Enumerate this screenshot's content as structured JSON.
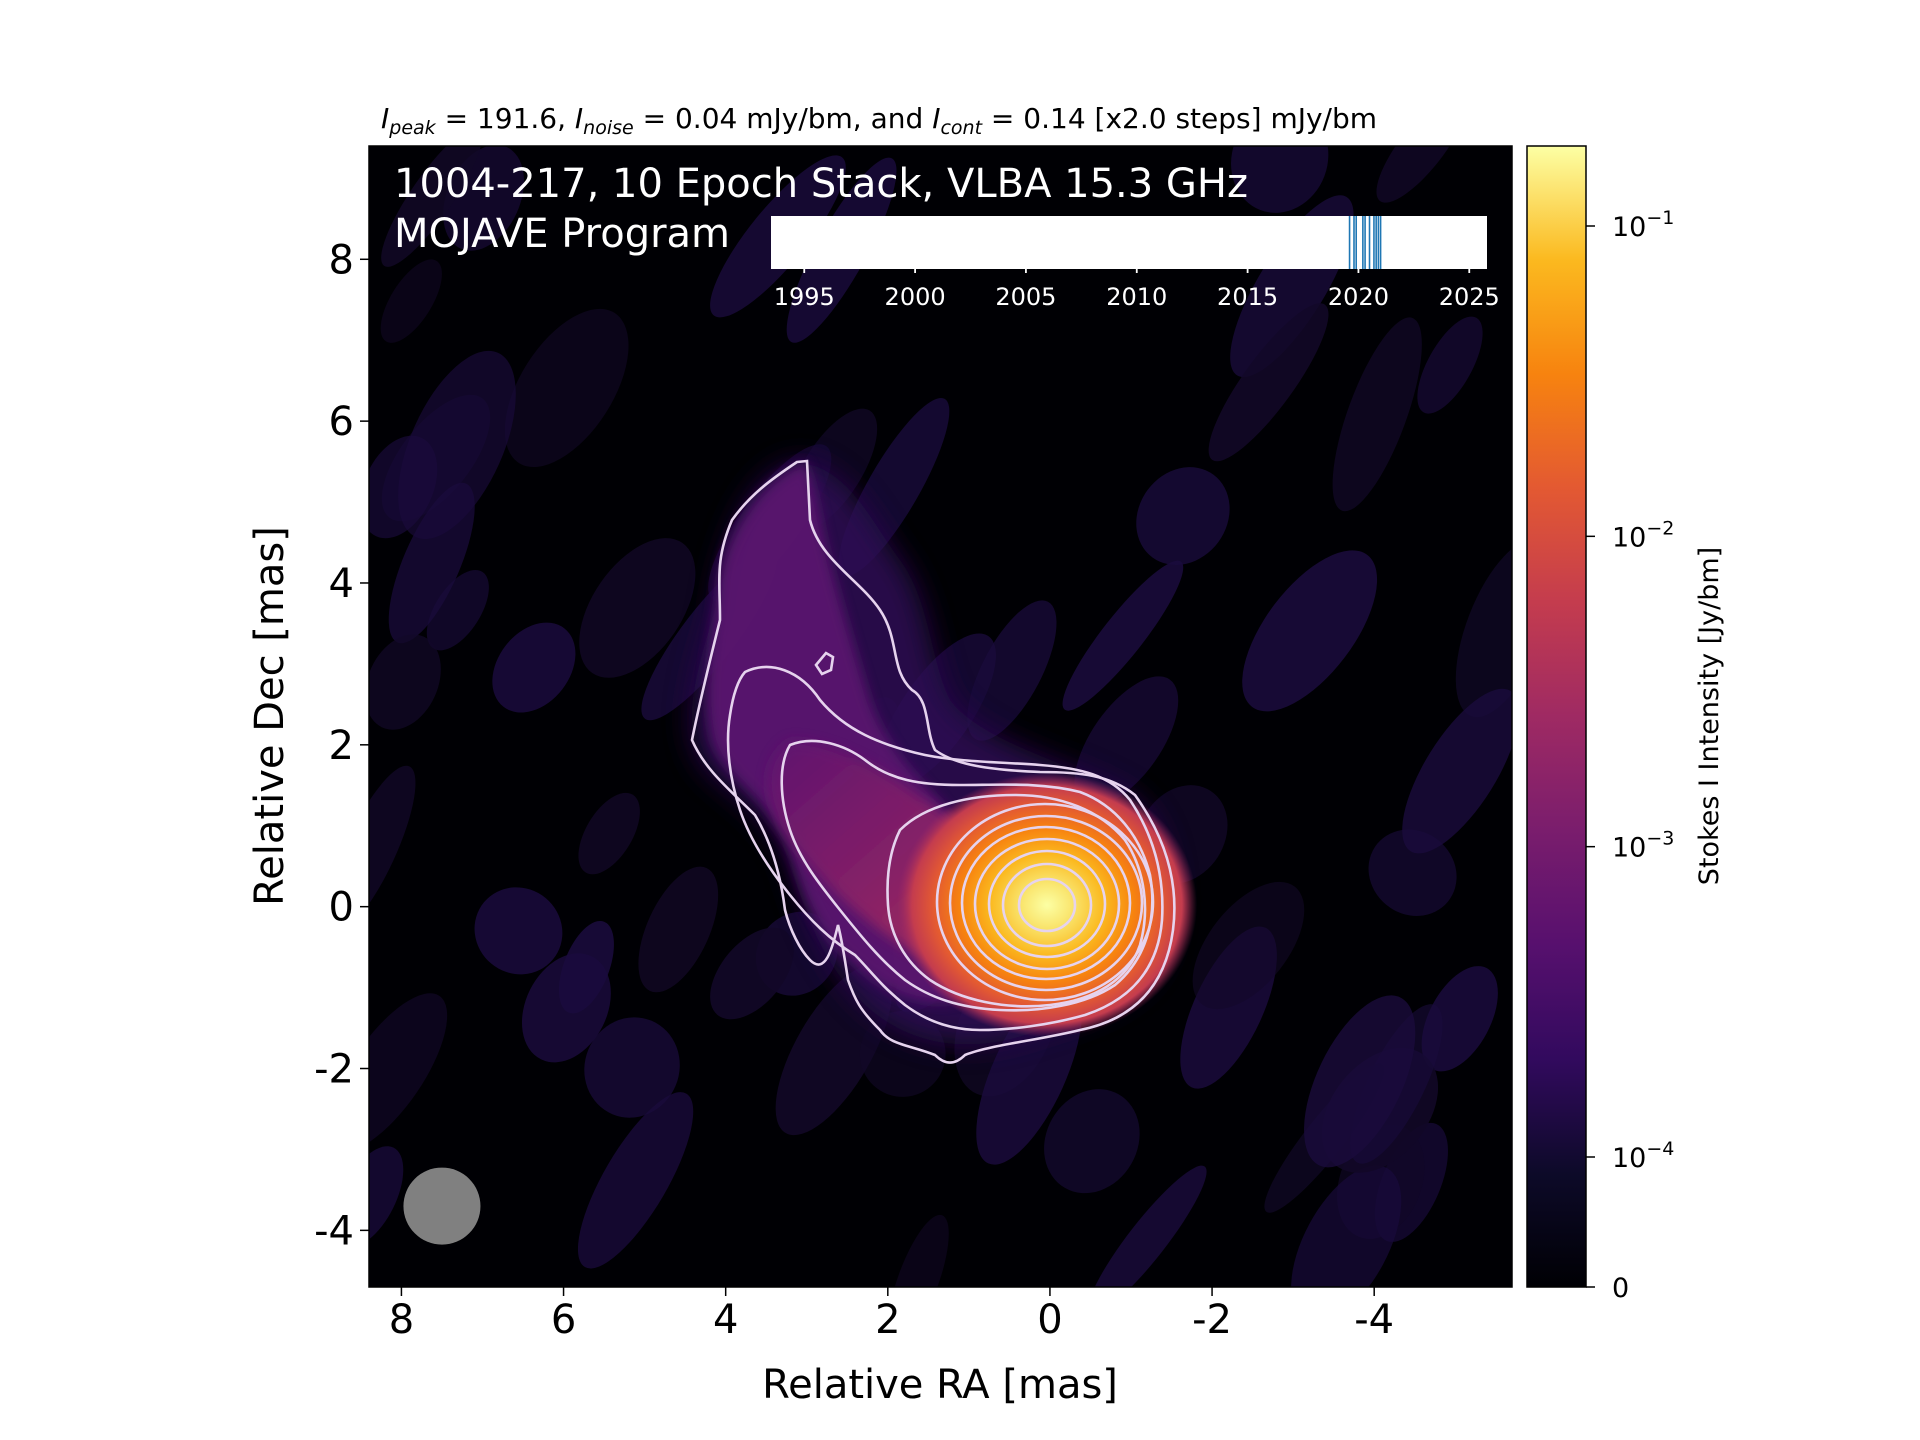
{
  "caption": {
    "peak_sym": "I",
    "peak_sub": "peak",
    "peak_val": " = 191.6, ",
    "noise_sym": "I",
    "noise_sub": "noise",
    "noise_val": " = 0.04 mJy/bm, and ",
    "cont_sym": "I",
    "cont_sub": "cont",
    "cont_val": " = 0.14 [x2.0 steps] mJy/bm"
  },
  "overlay": {
    "line1": "1004-217, 10 Epoch Stack, VLBA 15.3 GHz",
    "line2": "MOJAVE Program"
  },
  "chart_data": {
    "type": "heatmap",
    "xlabel": "Relative RA [mas]",
    "ylabel": "Relative Dec [mas]",
    "xlim": [
      8.4,
      -5.7
    ],
    "ylim": [
      -4.7,
      9.4
    ],
    "xticks": [
      8,
      6,
      4,
      2,
      0,
      -2,
      -4
    ],
    "xtick_labels": [
      "8",
      "6",
      "4",
      "2",
      "0",
      "-2",
      "-4"
    ],
    "yticks": [
      8,
      6,
      4,
      2,
      0,
      -2,
      -4
    ],
    "ytick_labels": [
      "8",
      "6",
      "4",
      "2",
      "0",
      "-2",
      "-4"
    ],
    "colormap": "inferno",
    "colorbar": {
      "label": "Stokes I Intensity [Jy/bm]",
      "ticks": [
        {
          "value": 0.1,
          "base": "10",
          "exp": "−1"
        },
        {
          "value": 0.01,
          "base": "10",
          "exp": "−2"
        },
        {
          "value": 0.001,
          "base": "10",
          "exp": "−3"
        },
        {
          "value": 0.0001,
          "base": "10",
          "exp": "−4"
        },
        {
          "value": 0,
          "base": "0",
          "exp": ""
        }
      ]
    },
    "source": {
      "peak_ra": 0.0,
      "peak_dec": 0.0,
      "jet_direction": "north-east"
    },
    "contour_levels_mJy": [
      0.14,
      0.28,
      0.56,
      1.12,
      2.24,
      4.48,
      8.96,
      17.92,
      35.84,
      71.68,
      143.36
    ],
    "beam": {
      "ra": 7.5,
      "dec": -3.7,
      "major_mas": 0.95,
      "minor_mas": 0.95,
      "color": "#808080"
    },
    "epoch_timeline": {
      "xlim": [
        1993.5,
        2025.8
      ],
      "ticks": [
        1995,
        2000,
        2005,
        2010,
        2015,
        2020,
        2025
      ],
      "tick_labels": [
        "1995",
        "2000",
        "2005",
        "2010",
        "2015",
        "2020",
        "2025"
      ],
      "epochs": [
        2019.6,
        2019.8,
        2019.9,
        2020.2,
        2020.3,
        2020.5,
        2020.7,
        2020.8,
        2020.9,
        2021.0
      ],
      "color": "#1f77b4"
    }
  }
}
